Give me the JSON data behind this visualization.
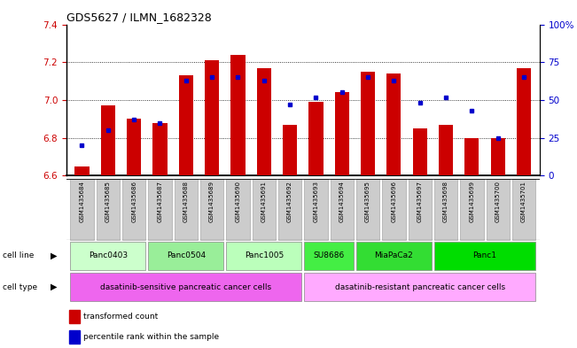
{
  "title": "GDS5627 / ILMN_1682328",
  "samples": [
    "GSM1435684",
    "GSM1435685",
    "GSM1435686",
    "GSM1435687",
    "GSM1435688",
    "GSM1435689",
    "GSM1435690",
    "GSM1435691",
    "GSM1435692",
    "GSM1435693",
    "GSM1435694",
    "GSM1435695",
    "GSM1435696",
    "GSM1435697",
    "GSM1435698",
    "GSM1435699",
    "GSM1435700",
    "GSM1435701"
  ],
  "transformed_count": [
    6.65,
    6.97,
    6.9,
    6.88,
    7.13,
    7.21,
    7.24,
    7.17,
    6.87,
    6.99,
    7.04,
    7.15,
    7.14,
    6.85,
    6.87,
    6.8,
    6.8,
    7.17
  ],
  "percentile_rank": [
    20,
    30,
    37,
    35,
    63,
    65,
    65,
    63,
    47,
    52,
    55,
    65,
    63,
    48,
    52,
    43,
    25,
    65
  ],
  "ymin": 6.6,
  "ymax": 7.4,
  "yticks": [
    6.6,
    6.8,
    7.0,
    7.2,
    7.4
  ],
  "y2ticks": [
    0,
    25,
    50,
    75,
    100
  ],
  "bar_color": "#cc0000",
  "dot_color": "#0000cc",
  "cell_lines": [
    {
      "name": "Panc0403",
      "start": 0,
      "end": 3,
      "color": "#ccffcc"
    },
    {
      "name": "Panc0504",
      "start": 3,
      "end": 6,
      "color": "#99ee99"
    },
    {
      "name": "Panc1005",
      "start": 6,
      "end": 9,
      "color": "#bbffbb"
    },
    {
      "name": "SU8686",
      "start": 9,
      "end": 11,
      "color": "#44ee44"
    },
    {
      "name": "MiaPaCa2",
      "start": 11,
      "end": 14,
      "color": "#33dd33"
    },
    {
      "name": "Panc1",
      "start": 14,
      "end": 18,
      "color": "#00dd00"
    }
  ],
  "cell_types": [
    {
      "name": "dasatinib-sensitive pancreatic cancer cells",
      "start": 0,
      "end": 9,
      "color": "#ee66ee"
    },
    {
      "name": "dasatinib-resistant pancreatic cancer cells",
      "start": 9,
      "end": 18,
      "color": "#ffaaff"
    }
  ],
  "bar_width": 0.55,
  "bar_baseline": 6.6,
  "sample_box_color": "#cccccc",
  "label_fontsize": 7,
  "tick_fontsize": 7.5
}
